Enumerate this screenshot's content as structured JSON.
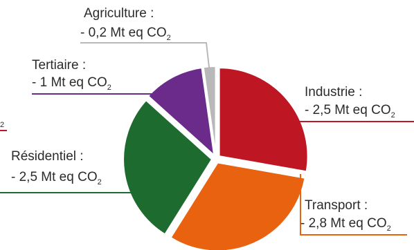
{
  "chart_data": {
    "type": "pie",
    "unit_text": "Mt eq CO",
    "unit_subscript": "2",
    "slices": [
      {
        "name": "Industrie :",
        "value_text": "- 2,5 Mt eq CO",
        "value": -2.5,
        "color": "#be1622"
      },
      {
        "name": "Transport :",
        "value_text": "- 2,8 Mt eq CO",
        "value": -2.8,
        "color": "#e8620f"
      },
      {
        "name": "Résidentiel :",
        "value_text": "- 2,5 Mt eq CO",
        "value": -2.5,
        "color": "#1e6b30"
      },
      {
        "name": "Tertiaire :",
        "value_text": "- 1 Mt eq CO",
        "value": -1.0,
        "color": "#6a2b8a"
      },
      {
        "name": "Agriculture :",
        "value_text": "- 0,2 Mt eq CO",
        "value": -0.2,
        "color": "#b8b8b8"
      }
    ],
    "partial_label": {
      "text": "2",
      "color": "#be1622"
    }
  }
}
